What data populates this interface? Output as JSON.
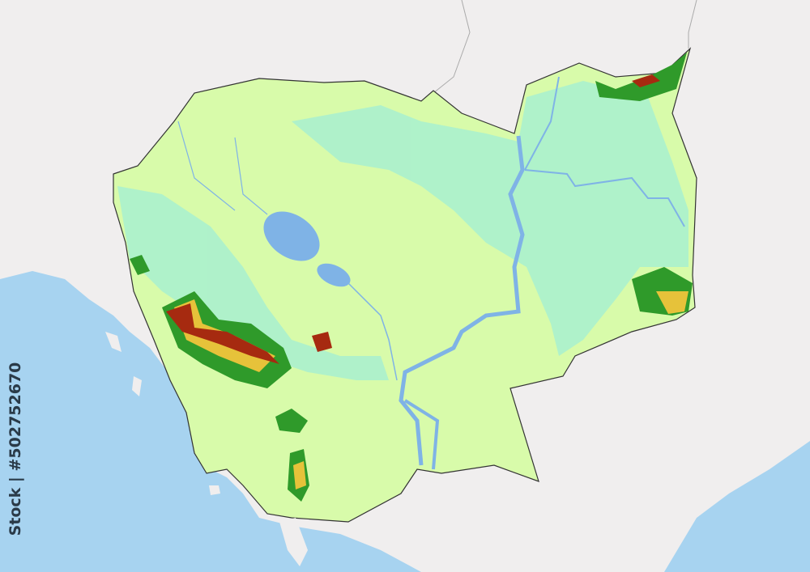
{
  "map": {
    "colors": {
      "land_outside": "#f0eeee",
      "sea": "#a7d3f0",
      "lowland": "#d8fbaa",
      "wetland": "#a8f0d0",
      "forest_green": "#2f9a2a",
      "highland_yellow": "#e6c23a",
      "peak_red": "#a62a10",
      "river": "#7fb3e6",
      "border": "#333333"
    }
  },
  "watermark": {
    "text": "Stock | #502752670"
  }
}
